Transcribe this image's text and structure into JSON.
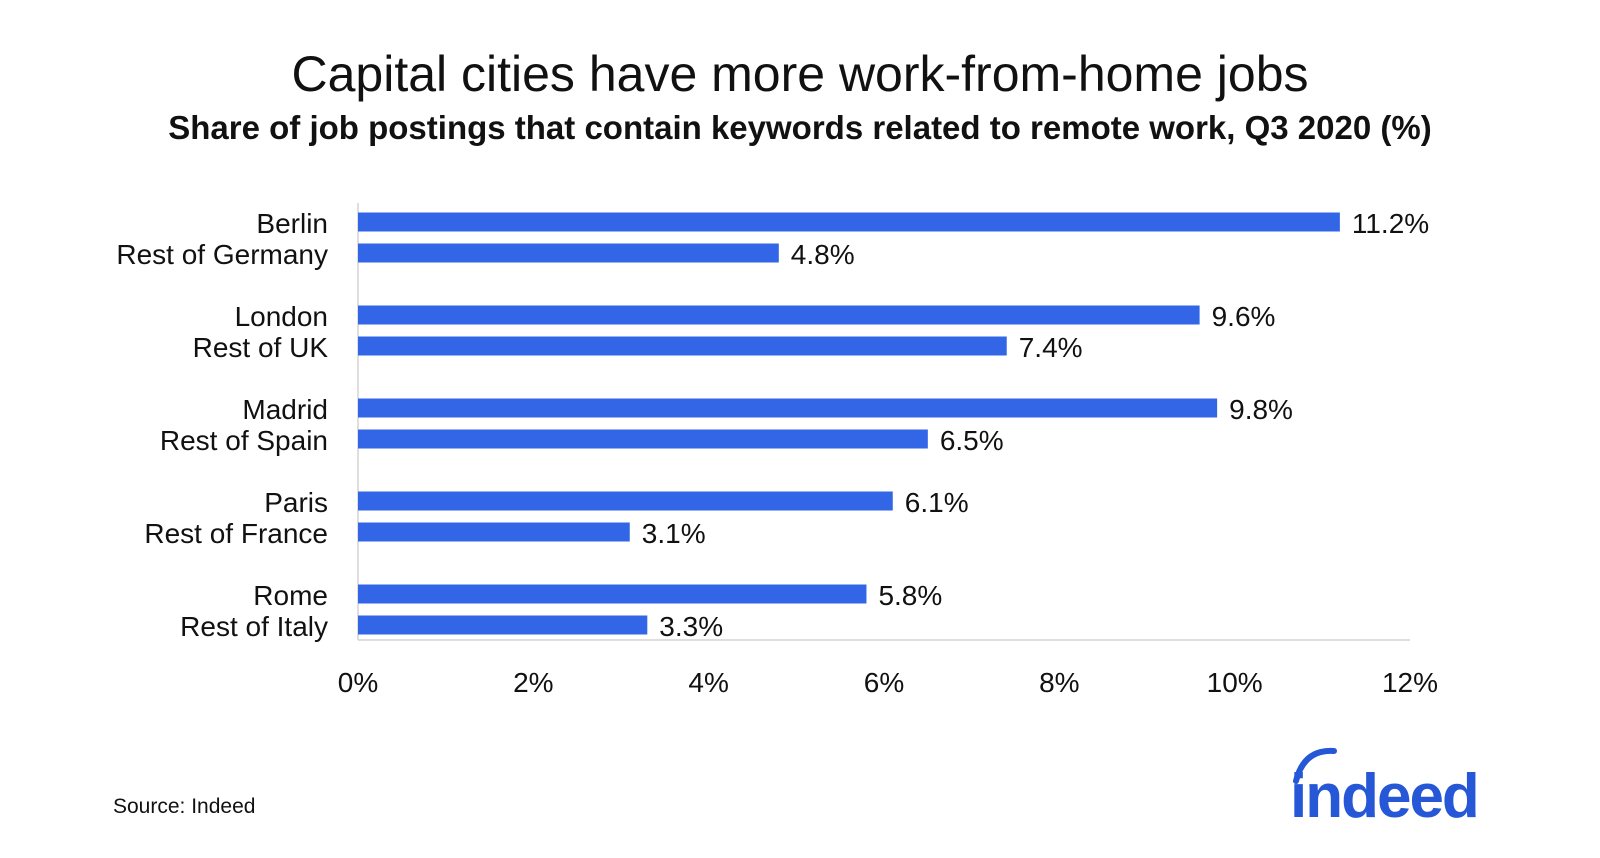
{
  "chart_data": {
    "type": "bar",
    "orientation": "horizontal",
    "title": "Capital cities have more work-from-home jobs",
    "subtitle": "Share of job postings that contain keywords related to remote work, Q3 2020 (%)",
    "xlabel": "",
    "ylabel": "",
    "xlim": [
      0,
      12
    ],
    "ticks": [
      0,
      2,
      4,
      6,
      8,
      10,
      12
    ],
    "tick_labels": [
      "0%",
      "2%",
      "4%",
      "6%",
      "8%",
      "10%",
      "12%"
    ],
    "categories": [
      "Berlin",
      "Rest of Germany",
      "London",
      "Rest of UK",
      "Madrid",
      "Rest of Spain",
      "Paris",
      "Rest of France",
      "Rome",
      "Rest of Italy"
    ],
    "values": [
      11.2,
      4.8,
      9.6,
      7.4,
      9.8,
      6.5,
      6.1,
      3.1,
      5.8,
      3.3
    ],
    "value_labels": [
      "11.2%",
      "4.8%",
      "9.6%",
      "7.4%",
      "9.8%",
      "6.5%",
      "6.1%",
      "3.1%",
      "5.8%",
      "3.3%"
    ],
    "bar_color": "#3366e6",
    "grid": false,
    "legend": "none"
  },
  "source": "Source: Indeed",
  "logo": {
    "text": "indeed",
    "color": "#2557d6"
  }
}
